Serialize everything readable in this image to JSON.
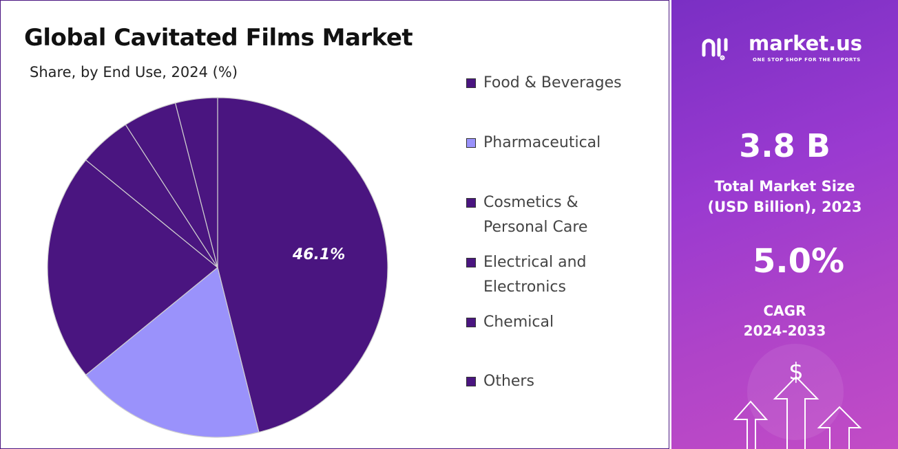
{
  "chart_data": {
    "type": "pie",
    "title": "Global Cavitated Films Market",
    "subtitle": "Share, by End Use, 2024 (%)",
    "categories": [
      "Food & Beverages",
      "Pharmaceutical",
      "Cosmetics & Personal Care",
      "Electrical and Electronics",
      "Chemical",
      "Others"
    ],
    "values": [
      46.1,
      18.0,
      21.8,
      5.0,
      5.1,
      4.0
    ],
    "value_labels": [
      "46.1%",
      null,
      null,
      null,
      null,
      null
    ],
    "colors": [
      "#4a1580",
      "#9a92fb",
      "#4a1580",
      "#4a1580",
      "#4a1580",
      "#4a1580"
    ]
  },
  "side_panel": {
    "brand": "market.us",
    "tagline": "ONE STOP SHOP FOR THE REPORTS",
    "market_size": "3.8 B",
    "market_size_label": [
      "Total Market Size",
      "(USD Billion), 2023"
    ],
    "cagr": "5.0%",
    "cagr_label": [
      "CAGR",
      "2024-2033"
    ]
  }
}
